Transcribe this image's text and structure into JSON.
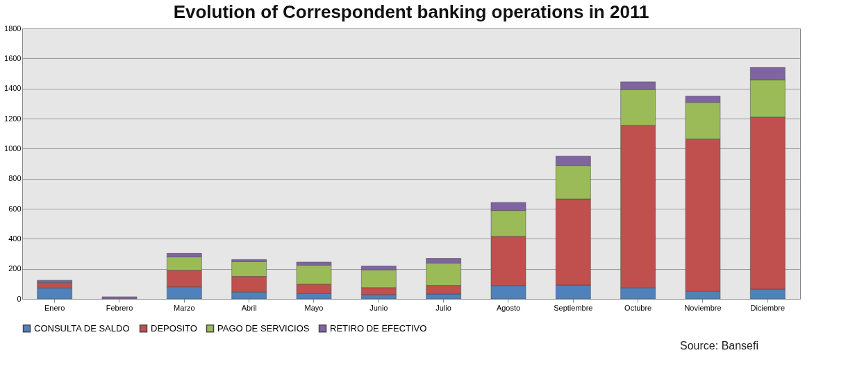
{
  "chart_data": {
    "type": "bar",
    "title": "Evolution of Correspondent banking operations in 2011",
    "categories": [
      "Enero",
      "Febrero",
      "Marzo",
      "Abril",
      "Mayo",
      "Junio",
      "Julio",
      "Agosto",
      "Septiembre",
      "Octubre",
      "Noviembre",
      "Diciembre"
    ],
    "stacked": true,
    "series": [
      {
        "name": "CONSULTA DE SALDO",
        "color": "#4f81bd",
        "values": [
          72,
          null,
          80,
          45,
          35,
          28,
          32,
          88,
          92,
          73,
          50,
          65
        ]
      },
      {
        "name": "DEPOSITO",
        "color": "#c0504d",
        "values": [
          32,
          null,
          110,
          105,
          63,
          47,
          58,
          327,
          573,
          1082,
          1015,
          1145
        ]
      },
      {
        "name": "PAGO DE SERVICIOS",
        "color": "#9bbb59",
        "values": [
          5,
          null,
          89,
          98,
          126,
          118,
          148,
          173,
          223,
          238,
          243,
          248
        ]
      },
      {
        "name": "RETIRO DE EFECTIVO",
        "color": "#8064a2",
        "values": [
          15,
          14,
          24,
          14,
          21,
          25,
          32,
          54,
          62,
          52,
          42,
          82
        ]
      }
    ],
    "ylim": [
      0,
      1800
    ],
    "yticks": [
      0,
      200,
      400,
      600,
      800,
      1000,
      1200,
      1400,
      1600,
      1800
    ],
    "grid": "y",
    "legend": "bottom",
    "annotations": [
      "Source: Bansefi"
    ]
  }
}
